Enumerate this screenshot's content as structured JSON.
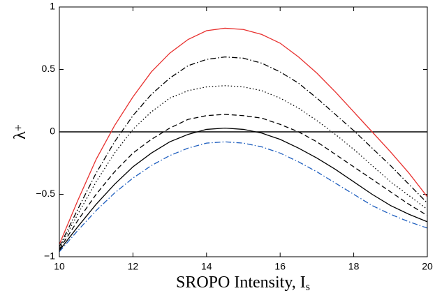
{
  "chart_data": {
    "type": "line",
    "xlabel": "SROPO Intensity, I",
    "xlabel_subscript": "s",
    "ylabel": "λ",
    "ylabel_superscript": "+",
    "x": [
      10,
      10.5,
      11,
      11.5,
      12,
      12.5,
      13,
      13.5,
      14,
      14.5,
      15,
      15.5,
      16,
      16.5,
      17,
      17.5,
      18,
      18.5,
      19,
      19.5,
      20
    ],
    "series": [
      {
        "color": "#e8312f",
        "style": "solid",
        "values": [
          -0.9,
          -0.55,
          -0.22,
          0.05,
          0.28,
          0.48,
          0.63,
          0.74,
          0.81,
          0.83,
          0.82,
          0.78,
          0.71,
          0.6,
          0.47,
          0.32,
          0.16,
          0.0,
          -0.16,
          -0.33,
          -0.52
        ]
      },
      {
        "color": "#000000",
        "style": "dashdot",
        "values": [
          -0.92,
          -0.62,
          -0.33,
          -0.08,
          0.13,
          0.3,
          0.43,
          0.53,
          0.58,
          0.6,
          0.59,
          0.55,
          0.48,
          0.39,
          0.27,
          0.14,
          0.01,
          -0.13,
          -0.27,
          -0.42,
          -0.57
        ]
      },
      {
        "color": "#000000",
        "style": "dotted",
        "values": [
          -0.93,
          -0.66,
          -0.4,
          -0.17,
          0.02,
          0.16,
          0.27,
          0.33,
          0.36,
          0.37,
          0.36,
          0.33,
          0.27,
          0.19,
          0.09,
          -0.02,
          -0.14,
          -0.27,
          -0.4,
          -0.51,
          -0.62
        ]
      },
      {
        "color": "#000000",
        "style": "dashed",
        "values": [
          -0.94,
          -0.71,
          -0.5,
          -0.32,
          -0.17,
          -0.06,
          0.03,
          0.1,
          0.13,
          0.14,
          0.13,
          0.11,
          0.06,
          0.0,
          -0.08,
          -0.18,
          -0.28,
          -0.38,
          -0.48,
          -0.58,
          -0.67
        ]
      },
      {
        "color": "#000000",
        "style": "solid",
        "values": [
          -0.95,
          -0.76,
          -0.58,
          -0.42,
          -0.28,
          -0.17,
          -0.08,
          -0.02,
          0.02,
          0.03,
          0.02,
          -0.01,
          -0.06,
          -0.13,
          -0.21,
          -0.3,
          -0.4,
          -0.5,
          -0.59,
          -0.66,
          -0.72
        ]
      },
      {
        "color": "#1f5fbf",
        "style": "dashdot",
        "values": [
          -0.96,
          -0.79,
          -0.63,
          -0.49,
          -0.37,
          -0.27,
          -0.19,
          -0.13,
          -0.09,
          -0.08,
          -0.09,
          -0.12,
          -0.17,
          -0.24,
          -0.32,
          -0.41,
          -0.5,
          -0.59,
          -0.66,
          -0.72,
          -0.77
        ]
      }
    ],
    "reference_line": 0,
    "xlim": [
      10,
      20
    ],
    "xticks": [
      10,
      12,
      14,
      16,
      18,
      20
    ],
    "ylim": [
      -1,
      1
    ],
    "yticks": [
      {
        "value": -1,
        "label": "−1"
      },
      {
        "value": -0.5,
        "label": "−0.5"
      },
      0,
      0.5,
      1
    ],
    "grid": false
  }
}
